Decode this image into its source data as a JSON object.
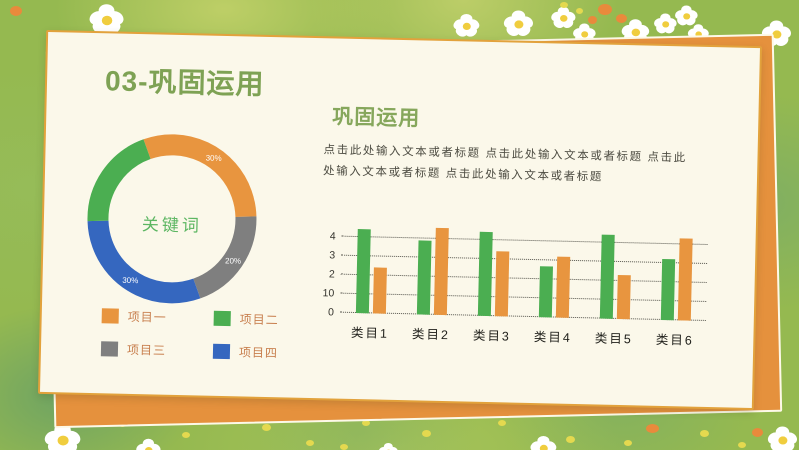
{
  "slide": {
    "title": "03-巩固运用"
  },
  "theme": {
    "title_green": "#7ea254",
    "heading_green": "#86a75c",
    "keyword_green": "#5cb662",
    "legend_text": "#c87f4e",
    "card_cream": "#fbf8ea",
    "card_orange": "#e5913d",
    "background_green": "#95b950"
  },
  "section": {
    "heading": "巩固运用",
    "body": "点击此处输入文本或者标题 点击此处输入文本或者标题 点击此处输入文本或者标题 点击此处输入文本或者标题"
  },
  "donut": {
    "center_label": "关键词"
  },
  "legend": {
    "items": [
      {
        "label": "项目一",
        "color": "#e8953f"
      },
      {
        "label": "项目二",
        "color": "#4bae51"
      },
      {
        "label": "项目三",
        "color": "#7f7f7f"
      },
      {
        "label": "项目四",
        "color": "#3567bf"
      }
    ]
  },
  "chart_data": [
    {
      "type": "pie",
      "subtype": "donut",
      "center_label": "关键词",
      "start_angle_deg": 339,
      "direction": "clockwise",
      "segments": [
        {
          "name": "项目一",
          "color": "#e8953f",
          "value": 30,
          "label": "30%"
        },
        {
          "name": "项目三",
          "color": "#7f7f7f",
          "value": 20,
          "label": "20%"
        },
        {
          "name": "项目四",
          "color": "#3567bf",
          "value": 30,
          "label": "30%"
        },
        {
          "name": "项目二",
          "color": "#4bae51",
          "value": 20,
          "label": ""
        }
      ],
      "legend_position": "bottom-left"
    },
    {
      "type": "bar",
      "categories": [
        "类目1",
        "类目2",
        "类目3",
        "类目4",
        "类目5",
        "类目6"
      ],
      "series": [
        {
          "name": "series-green",
          "color": "#4bae51",
          "values": [
            4.4,
            3.9,
            4.4,
            2.7,
            4.4,
            3.2
          ]
        },
        {
          "name": "series-orange",
          "color": "#e8953f",
          "values": [
            2.4,
            4.6,
            3.4,
            3.2,
            2.3,
            4.3
          ]
        }
      ],
      "y_tick_labels_bottom_to_top": [
        "0",
        "10",
        "2",
        "3",
        "4"
      ],
      "ylim": [
        0,
        5
      ],
      "grid": "dotted-horizontal",
      "legend_position": "none"
    }
  ]
}
